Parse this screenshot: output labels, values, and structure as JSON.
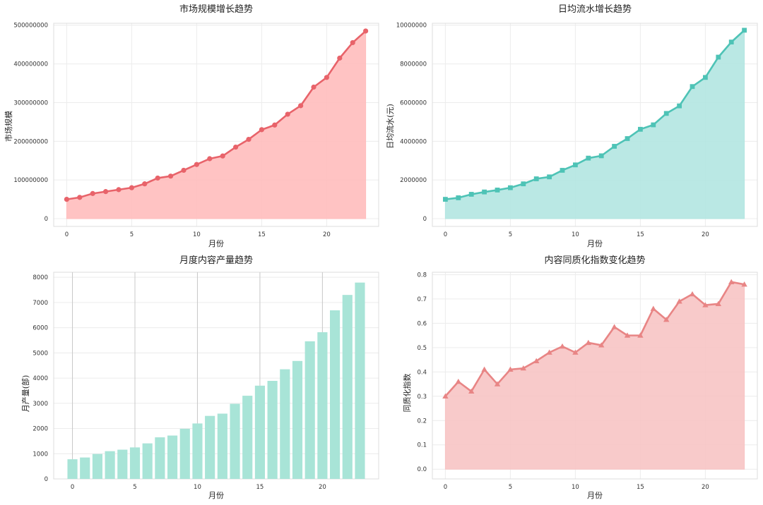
{
  "charts": [
    {
      "title": "市场规模增长趋势",
      "xlabel": "月份",
      "ylabel": "市场规模"
    },
    {
      "title": "日均流水增长趋势",
      "xlabel": "月份",
      "ylabel": "日均流水(元)"
    },
    {
      "title": "月度内容产量趋势",
      "xlabel": "月份",
      "ylabel": "月产量(部)"
    },
    {
      "title": "内容同质化指数变化趋势",
      "xlabel": "月份",
      "ylabel": "同质化指数"
    }
  ],
  "chart_data": [
    {
      "type": "area",
      "title": "市场规模增长趋势",
      "xlabel": "月份",
      "ylabel": "市场规模",
      "color": "#e8636a",
      "fill_color": "#ffbdbd",
      "marker": "circle",
      "x": [
        0,
        1,
        2,
        3,
        4,
        5,
        6,
        7,
        8,
        9,
        10,
        11,
        12,
        13,
        14,
        15,
        16,
        17,
        18,
        19,
        20,
        21,
        22,
        23
      ],
      "values": [
        50000000,
        55000000,
        65000000,
        70000000,
        75000000,
        80000000,
        90000000,
        105000000,
        110000000,
        125000000,
        140000000,
        155000000,
        162000000,
        185000000,
        205000000,
        230000000,
        242000000,
        270000000,
        292000000,
        340000000,
        365000000,
        415000000,
        455000000,
        485000000
      ],
      "xlim": [
        -1,
        24
      ],
      "ylim": [
        -20000000,
        505000000
      ],
      "xticks": [
        0,
        5,
        10,
        15,
        20
      ],
      "yticks": [
        0,
        100000000,
        200000000,
        300000000,
        400000000,
        500000000
      ],
      "grid": true
    },
    {
      "type": "area",
      "title": "日均流水增长趋势",
      "xlabel": "月份",
      "ylabel": "日均流水(元)",
      "color": "#4ec3b6",
      "fill_color": "#b3e6e1",
      "marker": "square",
      "x": [
        0,
        1,
        2,
        3,
        4,
        5,
        6,
        7,
        8,
        9,
        10,
        11,
        12,
        13,
        14,
        15,
        16,
        17,
        18,
        19,
        20,
        21,
        22,
        23
      ],
      "values": [
        1000000,
        1080000,
        1260000,
        1380000,
        1480000,
        1600000,
        1800000,
        2060000,
        2160000,
        2500000,
        2780000,
        3130000,
        3250000,
        3740000,
        4140000,
        4620000,
        4850000,
        5440000,
        5830000,
        6830000,
        7300000,
        8350000,
        9130000,
        9740000
      ],
      "xlim": [
        -1,
        24
      ],
      "ylim": [
        -400000,
        10100000
      ],
      "xticks": [
        0,
        5,
        10,
        15,
        20
      ],
      "yticks": [
        0,
        2000000,
        4000000,
        6000000,
        8000000,
        10000000
      ],
      "grid": true
    },
    {
      "type": "bar",
      "title": "月度内容产量趋势",
      "xlabel": "月份",
      "ylabel": "月产量(部)",
      "color": "#a8e4d7",
      "x": [
        0,
        1,
        2,
        3,
        4,
        5,
        6,
        7,
        8,
        9,
        10,
        11,
        12,
        13,
        14,
        15,
        16,
        17,
        18,
        19,
        20,
        21,
        22,
        23
      ],
      "values": [
        780,
        850,
        990,
        1100,
        1160,
        1250,
        1410,
        1650,
        1720,
        1990,
        2200,
        2500,
        2590,
        2980,
        3300,
        3700,
        3890,
        4350,
        4680,
        5460,
        5820,
        6690,
        7300,
        7790
      ],
      "xlim": [
        -1.5,
        24.5
      ],
      "ylim": [
        0,
        8200
      ],
      "xticks": [
        0,
        5,
        10,
        15,
        20
      ],
      "yticks": [
        0,
        1000,
        2000,
        3000,
        4000,
        5000,
        6000,
        7000,
        8000
      ],
      "grid": true
    },
    {
      "type": "area",
      "title": "内容同质化指数变化趋势",
      "xlabel": "月份",
      "ylabel": "同质化指数",
      "color": "#e88585",
      "fill_color": "#f7c4c4",
      "marker": "triangle",
      "x": [
        0,
        1,
        2,
        3,
        4,
        5,
        6,
        7,
        8,
        9,
        10,
        11,
        12,
        13,
        14,
        15,
        16,
        17,
        18,
        19,
        20,
        21,
        22,
        23
      ],
      "values": [
        0.3,
        0.36,
        0.32,
        0.41,
        0.35,
        0.41,
        0.415,
        0.445,
        0.48,
        0.505,
        0.48,
        0.52,
        0.51,
        0.585,
        0.55,
        0.55,
        0.66,
        0.615,
        0.69,
        0.72,
        0.675,
        0.68,
        0.77,
        0.76
      ],
      "xlim": [
        -1,
        24
      ],
      "ylim": [
        -0.04,
        0.81
      ],
      "xticks": [
        0,
        5,
        10,
        15,
        20
      ],
      "yticks": [
        0.0,
        0.1,
        0.2,
        0.3,
        0.4,
        0.5,
        0.6,
        0.7,
        0.8
      ],
      "grid": true
    }
  ]
}
